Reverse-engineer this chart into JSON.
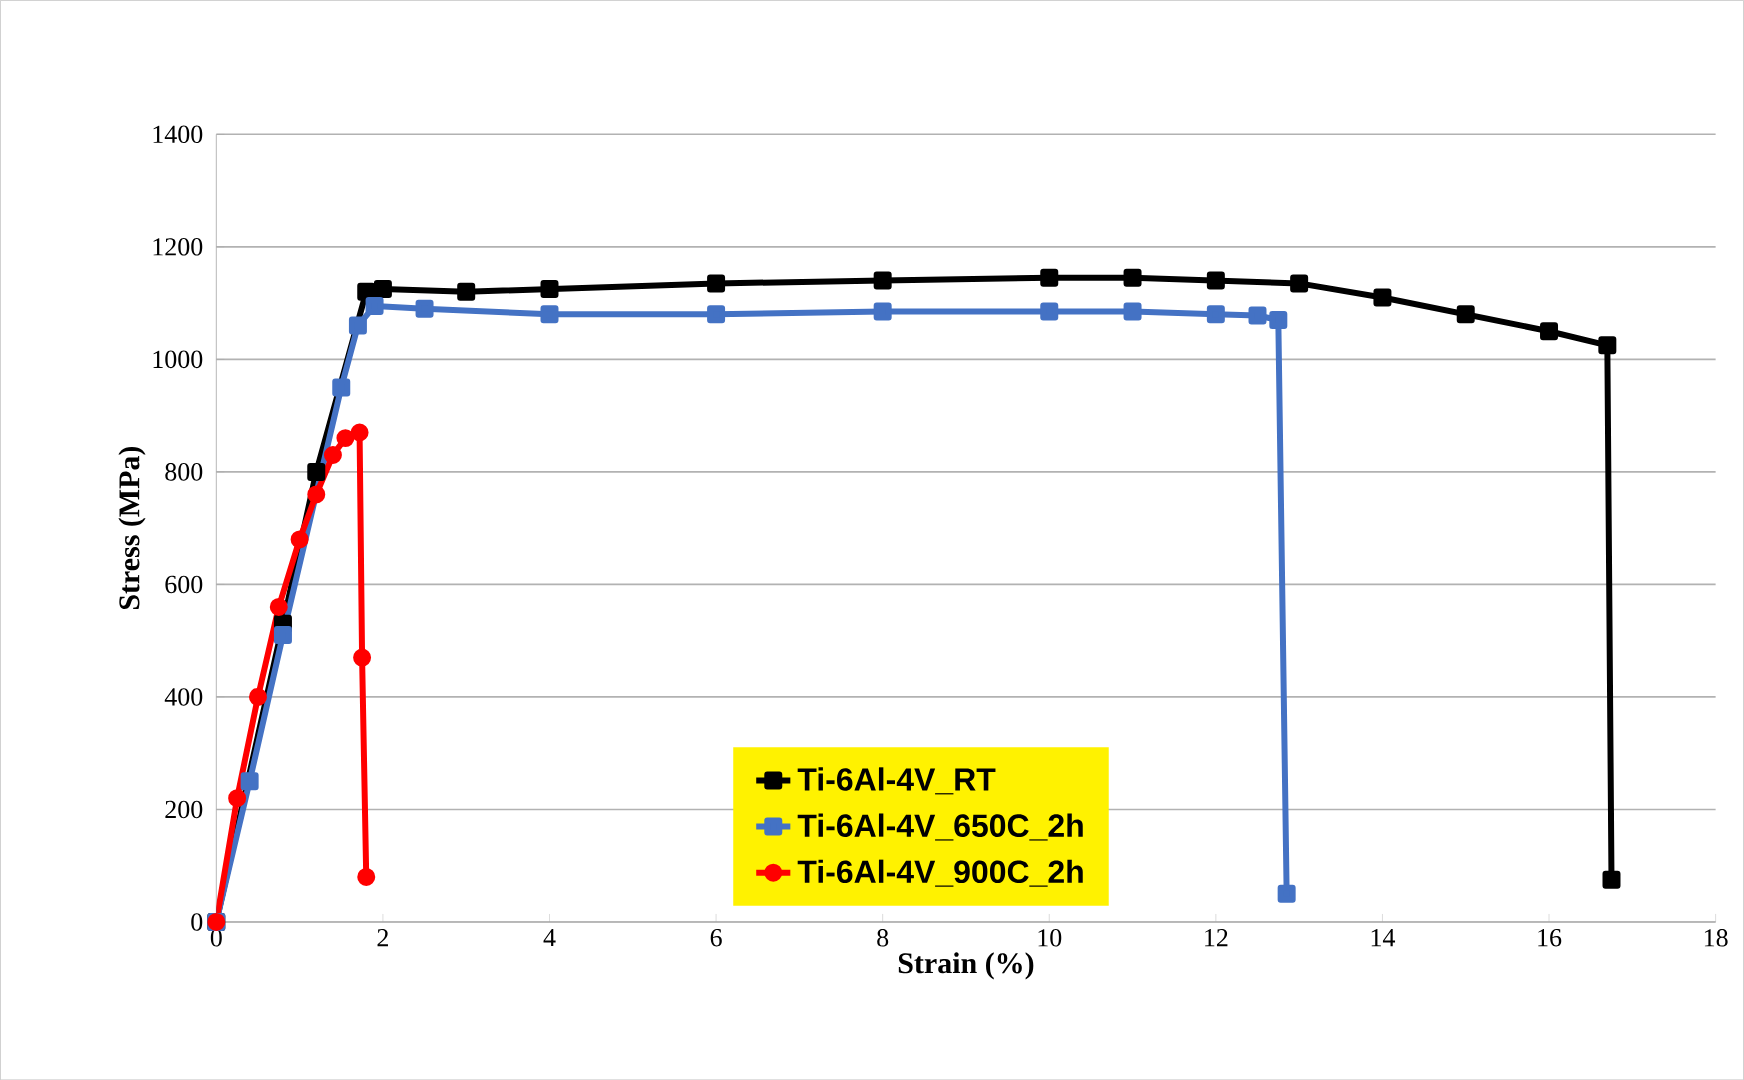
{
  "chart_data": {
    "type": "line",
    "xlabel": "Strain (%)",
    "ylabel": "Stress (MPa)",
    "xlim": [
      0,
      18
    ],
    "xticks": [
      0,
      2,
      4,
      6,
      8,
      10,
      12,
      14,
      16,
      18
    ],
    "ylim": [
      0,
      1400
    ],
    "yticks": [
      0,
      200,
      400,
      600,
      800,
      1000,
      1200,
      1400
    ],
    "grid": "y",
    "legend": "bottom",
    "line_style": "solid",
    "series": [
      {
        "name": "Ti-6Al-4V_RT",
        "color": "#000000",
        "marker": "square",
        "x": [
          0,
          0.8,
          1.2,
          1.8,
          2.0,
          3,
          4,
          6,
          8,
          10,
          11,
          12,
          13,
          14,
          15,
          16,
          16.7,
          16.75
        ],
        "values": [
          0,
          530,
          800,
          1120,
          1125,
          1120,
          1125,
          1135,
          1140,
          1145,
          1145,
          1140,
          1135,
          1110,
          1080,
          1050,
          1025,
          75
        ]
      },
      {
        "name": "Ti-6Al-4V_650C_2h",
        "color": "#4472c4",
        "marker": "square",
        "x": [
          0,
          0.4,
          0.8,
          1.5,
          1.7,
          1.9,
          2.5,
          4,
          6,
          8,
          10,
          11,
          12,
          12.5,
          12.75,
          12.85
        ],
        "values": [
          0,
          250,
          510,
          950,
          1060,
          1095,
          1090,
          1080,
          1080,
          1085,
          1085,
          1085,
          1080,
          1078,
          1070,
          50
        ]
      },
      {
        "name": "Ti-6Al-4V_900C_2h",
        "color": "#ff0000",
        "marker": "circle",
        "x": [
          0,
          0.25,
          0.5,
          0.75,
          1.0,
          1.2,
          1.4,
          1.55,
          1.72,
          1.75,
          1.8
        ],
        "values": [
          0,
          220,
          400,
          560,
          680,
          760,
          830,
          860,
          870,
          470,
          80
        ]
      }
    ]
  }
}
